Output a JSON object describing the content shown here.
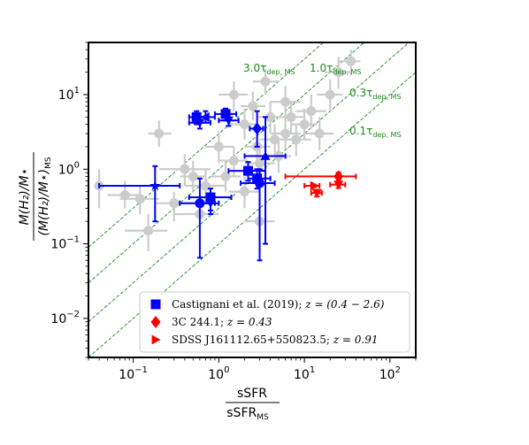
{
  "chart_data": {
    "type": "scatter",
    "log_x": true,
    "log_y": true,
    "xlim": [
      0.03,
      200
    ],
    "ylim": [
      0.003,
      50
    ],
    "x_ticks": [
      {
        "value": 0.1,
        "base": "10",
        "exp": "−1"
      },
      {
        "value": 1,
        "base": "10",
        "exp": "0"
      },
      {
        "value": 10,
        "base": "10",
        "exp": "1"
      },
      {
        "value": 100,
        "base": "10",
        "exp": "2"
      }
    ],
    "y_ticks": [
      {
        "value": 0.01,
        "base": "10",
        "exp": "−2"
      },
      {
        "value": 0.1,
        "base": "10",
        "exp": "−1"
      },
      {
        "value": 1,
        "base": "10",
        "exp": "0"
      },
      {
        "value": 10,
        "base": "10",
        "exp": "1"
      }
    ],
    "xlabel": {
      "numerator": "sSFR",
      "denominator": "sSFR",
      "denominator_sub": "MS"
    },
    "ylabel": {
      "numerator": "M(H₂)/M⋆",
      "denominator": "(M(H₂)/M⋆)",
      "denominator_sub": "MS"
    },
    "depletion_lines": [
      {
        "factor": 3.0,
        "label": "3.0τ",
        "sub": "dep, MS"
      },
      {
        "factor": 1.0,
        "label": "1.0τ",
        "sub": "dep, MS"
      },
      {
        "factor": 0.3,
        "label": "0.3τ",
        "sub": "dep, MS"
      },
      {
        "factor": 0.1,
        "label": "0.1τ",
        "sub": "dep, MS"
      }
    ],
    "colors": {
      "background_points": "#cccccc",
      "castignani": "#0000ff",
      "c3_244": "#ff0000",
      "sdss": "#ff0000",
      "lines": "#1a8c1a"
    },
    "background_points": [
      {
        "x": 0.04,
        "y": 0.6,
        "ex": [
          0.035,
          0.05
        ],
        "ey": [
          0.3,
          1.0
        ]
      },
      {
        "x": 0.08,
        "y": 0.45,
        "ex": [
          0.05,
          0.12
        ],
        "ey": [
          0.3,
          0.7
        ]
      },
      {
        "x": 0.12,
        "y": 0.4,
        "ex": [
          0.07,
          0.2
        ],
        "ey": [
          0.25,
          0.6
        ]
      },
      {
        "x": 0.2,
        "y": 3.0,
        "ex": [
          0.15,
          0.28
        ],
        "ey": [
          2.0,
          4.5
        ]
      },
      {
        "x": 0.3,
        "y": 0.35,
        "ex": [
          0.18,
          0.5
        ],
        "ey": [
          0.2,
          0.5
        ]
      },
      {
        "x": 0.4,
        "y": 1.0,
        "ex": [
          0.2,
          0.8
        ],
        "ey": [
          0.6,
          1.6
        ]
      },
      {
        "x": 0.5,
        "y": 0.8,
        "ex": [
          0.35,
          0.7
        ],
        "ey": [
          0.5,
          1.3
        ]
      },
      {
        "x": 0.7,
        "y": 0.6,
        "ex": [
          0.4,
          1.2
        ],
        "ey": [
          0.35,
          1.0
        ]
      },
      {
        "x": 1.0,
        "y": 2.0,
        "ex": [
          0.7,
          1.5
        ],
        "ey": [
          1.2,
          3.2
        ]
      },
      {
        "x": 1.2,
        "y": 0.8,
        "ex": [
          0.8,
          1.8
        ],
        "ey": [
          0.5,
          1.3
        ]
      },
      {
        "x": 1.5,
        "y": 1.3,
        "ex": [
          1.0,
          2.2
        ],
        "ey": [
          0.8,
          2.0
        ]
      },
      {
        "x": 1.5,
        "y": 10.0,
        "ex": [
          1.0,
          2.2
        ],
        "ey": [
          6.0,
          15.0
        ]
      },
      {
        "x": 2.0,
        "y": 4.0,
        "ex": [
          1.4,
          2.8
        ],
        "ey": [
          2.5,
          6.5
        ]
      },
      {
        "x": 2.0,
        "y": 0.5,
        "ex": [
          1.3,
          3.0
        ],
        "ey": [
          0.3,
          0.8
        ]
      },
      {
        "x": 2.5,
        "y": 7.0,
        "ex": [
          1.8,
          3.5
        ],
        "ey": [
          4.5,
          11.0
        ]
      },
      {
        "x": 2.8,
        "y": 2.0,
        "ex": [
          2.0,
          4.0
        ],
        "ey": [
          1.2,
          3.2
        ]
      },
      {
        "x": 3.0,
        "y": 1.2,
        "ex": [
          2.0,
          4.5
        ],
        "ey": [
          0.7,
          2.0
        ]
      },
      {
        "x": 3.5,
        "y": 15.0,
        "ex": [
          2.5,
          5.0
        ],
        "ey": [
          10.0,
          22.0
        ]
      },
      {
        "x": 4.0,
        "y": 5.0,
        "ex": [
          2.8,
          6.0
        ],
        "ey": [
          3.0,
          8.0
        ]
      },
      {
        "x": 4.5,
        "y": 2.5,
        "ex": [
          3.0,
          7.0
        ],
        "ey": [
          1.5,
          4.0
        ]
      },
      {
        "x": 5.0,
        "y": 1.5,
        "ex": [
          3.5,
          7.0
        ],
        "ey": [
          0.9,
          2.4
        ]
      },
      {
        "x": 6.0,
        "y": 3.0,
        "ex": [
          4.0,
          9.0
        ],
        "ey": [
          1.8,
          5.0
        ]
      },
      {
        "x": 6.0,
        "y": 8.0,
        "ex": [
          4.0,
          9.0
        ],
        "ey": [
          5.0,
          13.0
        ]
      },
      {
        "x": 7.0,
        "y": 5.0,
        "ex": [
          5.0,
          10.0
        ],
        "ey": [
          3.0,
          8.0
        ]
      },
      {
        "x": 8.0,
        "y": 2.5,
        "ex": [
          5.5,
          12.0
        ],
        "ey": [
          1.5,
          4.0
        ]
      },
      {
        "x": 10.0,
        "y": 4.0,
        "ex": [
          7.0,
          14.0
        ],
        "ey": [
          2.5,
          6.5
        ]
      },
      {
        "x": 12.0,
        "y": 6.0,
        "ex": [
          8.0,
          18.0
        ],
        "ey": [
          3.5,
          10.0
        ]
      },
      {
        "x": 15.0,
        "y": 3.0,
        "ex": [
          10.0,
          22.0
        ],
        "ey": [
          1.8,
          5.0
        ]
      },
      {
        "x": 20.0,
        "y": 10.0,
        "ex": [
          14.0,
          28.0
        ],
        "ey": [
          6.0,
          16.0
        ]
      },
      {
        "x": 25.0,
        "y": 20.0,
        "ex": [
          17.0,
          35.0
        ],
        "ey": [
          12.0,
          32.0
        ]
      },
      {
        "x": 35.0,
        "y": 28.0,
        "ex": [
          25.0,
          45.0
        ],
        "ey": [
          18.0,
          40.0
        ]
      },
      {
        "x": 0.15,
        "y": 0.15,
        "ex": [
          0.08,
          0.25
        ],
        "ey": [
          0.08,
          0.25
        ]
      },
      {
        "x": 0.6,
        "y": 0.25,
        "ex": [
          0.3,
          1.0
        ],
        "ey": [
          0.12,
          0.45
        ]
      },
      {
        "x": 3.0,
        "y": 0.2,
        "ex": [
          2.0,
          4.5
        ],
        "ey": [
          0.08,
          0.4
        ]
      }
    ],
    "series": [
      {
        "name": "Castignani et al. (2019); z ≃ (0.4 − 2.6)",
        "legend_marker": "square",
        "color": "#0000ff",
        "points": [
          {
            "x": 0.55,
            "y": 5.0,
            "ex": [
              0.45,
              0.75
            ],
            "ey": [
              4.0,
              6.0
            ],
            "marker": "square"
          },
          {
            "x": 0.6,
            "y": 4.2,
            "ex": [
              0.45,
              0.8
            ],
            "ey": [
              3.5,
              5.0
            ],
            "marker": "tri-down"
          },
          {
            "x": 0.7,
            "y": 5.0,
            "ex": [
              0.6,
              0.9
            ],
            "ey": [
              4.2,
              6.0
            ],
            "marker": "tri-left"
          },
          {
            "x": 1.2,
            "y": 5.5,
            "ex": [
              0.9,
              1.6
            ],
            "ey": [
              4.5,
              6.5
            ],
            "marker": "square"
          },
          {
            "x": 1.3,
            "y": 4.5,
            "ex": [
              1.0,
              1.7
            ],
            "ey": [
              3.8,
              5.5
            ],
            "marker": "tri-down"
          },
          {
            "x": 2.8,
            "y": 3.5,
            "ex": [
              2.3,
              3.3
            ],
            "ey": [
              2.0,
              6.0
            ],
            "marker": "diamond"
          },
          {
            "x": 0.18,
            "y": 0.6,
            "ex": [
              0.04,
              0.35
            ],
            "ey": [
              0.2,
              1.1
            ],
            "marker": "star"
          },
          {
            "x": 0.6,
            "y": 0.35,
            "ex": [
              0.35,
              0.9
            ],
            "ey": [
              0.065,
              0.75
            ],
            "marker": "circle"
          },
          {
            "x": 0.8,
            "y": 0.42,
            "ex": [
              0.45,
              1.4
            ],
            "ey": [
              0.25,
              0.55
            ],
            "marker": "square"
          },
          {
            "x": 0.8,
            "y": 0.35,
            "ex": [
              0.6,
              1.0
            ],
            "ey": [
              0.28,
              0.45
            ],
            "marker": "tri-down"
          },
          {
            "x": 2.2,
            "y": 0.95,
            "ex": [
              1.3,
              3.5
            ],
            "ey": [
              0.7,
              1.25
            ],
            "marker": "square"
          },
          {
            "x": 2.8,
            "y": 0.75,
            "ex": [
              2.2,
              4.0
            ],
            "ey": [
              0.55,
              1.0
            ],
            "marker": "square"
          },
          {
            "x": 3.0,
            "y": 0.65,
            "ex": [
              1.8,
              4.5
            ],
            "ey": [
              0.06,
              1.0
            ],
            "marker": "circle"
          },
          {
            "x": 3.5,
            "y": 1.5,
            "ex": [
              2.0,
              6.0
            ],
            "ey": [
              0.1,
              5.0
            ],
            "marker": "tri-up"
          }
        ]
      },
      {
        "name": "3C 244.1; z = 0.43",
        "legend_marker": "diamond",
        "color": "#ff0000",
        "points": [
          {
            "x": 25.0,
            "y": 0.8,
            "ex": [
              6.0,
              40.0
            ],
            "ey": [
              0.72,
              0.9
            ],
            "marker": "diamond"
          },
          {
            "x": 25.0,
            "y": 0.62,
            "ex": [
              20.0,
              30.0
            ],
            "ey": [
              0.56,
              0.68
            ],
            "marker": "tri-down"
          }
        ]
      },
      {
        "name": "SDSS J161112.65+550823.5; z = 0.91",
        "legend_marker": "tri-right",
        "color": "#ff0000",
        "points": [
          {
            "x": 13.0,
            "y": 0.6,
            "ex": [
              10.0,
              15.0
            ],
            "ey": [
              0.58,
              0.62
            ],
            "marker": "tri-right"
          },
          {
            "x": 14.0,
            "y": 0.48,
            "ex": [
              12.0,
              16.0
            ],
            "ey": [
              0.43,
              0.53
            ],
            "marker": "tri-down"
          }
        ]
      }
    ],
    "legend": {
      "position": "lower-right",
      "entries": [
        {
          "marker": "square",
          "color": "#0000ff",
          "label": "Castignani et al. (2019); ",
          "math": "z ≃ (0.4 − 2.6)"
        },
        {
          "marker": "diamond",
          "color": "#ff0000",
          "label": "3C 244.1; ",
          "math": "z = 0.43"
        },
        {
          "marker": "tri-right",
          "color": "#ff0000",
          "label": "SDSS J161112.65+550823.5; ",
          "math": "z = 0.91"
        }
      ]
    }
  }
}
